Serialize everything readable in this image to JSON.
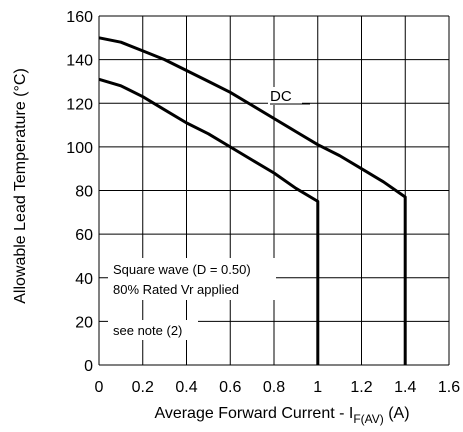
{
  "chart_data": {
    "type": "line",
    "xlabel_main": "Average Forward Current - I",
    "xlabel_sub": "F(AV)",
    "xlabel_unit": " (A)",
    "ylabel": "Allowable Lead  Temperature (°C)",
    "xlim": [
      0,
      1.6
    ],
    "ylim": [
      0,
      160
    ],
    "x_ticks": [
      "0",
      "0.2",
      "0.4",
      "0.6",
      "0.8",
      "1",
      "1.2",
      "1.4",
      "1.6"
    ],
    "y_ticks": [
      "0",
      "20",
      "40",
      "60",
      "80",
      "100",
      "120",
      "140",
      "160"
    ],
    "grid": true,
    "series": [
      {
        "name": "DC",
        "x": [
          0,
          0.1,
          0.2,
          0.3,
          0.4,
          0.5,
          0.6,
          0.7,
          0.8,
          0.9,
          1.0,
          1.1,
          1.2,
          1.3,
          1.4,
          1.4
        ],
        "y": [
          150,
          148,
          144,
          140,
          135,
          130,
          125,
          119,
          113,
          107,
          101,
          96,
          90,
          84,
          77,
          0
        ]
      },
      {
        "name": "",
        "x": [
          0,
          0.1,
          0.2,
          0.3,
          0.4,
          0.5,
          0.6,
          0.7,
          0.8,
          0.9,
          1.0,
          1.0
        ],
        "y": [
          131,
          128,
          123,
          117,
          111,
          106,
          100,
          94,
          88,
          81,
          75,
          0
        ]
      }
    ],
    "annotations": [
      "Square wave (D = 0.50)",
      "80% Rated Vr  applied",
      "see note (2)"
    ]
  }
}
